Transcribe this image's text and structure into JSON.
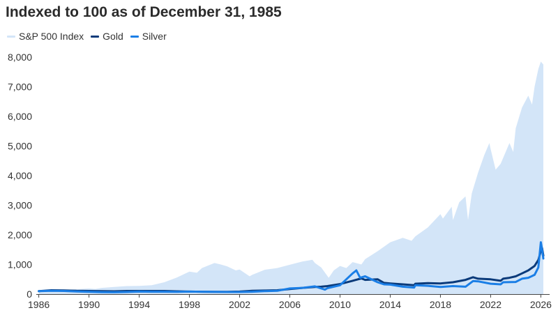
{
  "chart_data": {
    "type": "area",
    "title": "Indexed to 100 as of December 31, 1985",
    "xlabel": "",
    "ylabel": "",
    "xlim": [
      1985.8,
      2026.7
    ],
    "ylim": [
      0,
      8000
    ],
    "y_ticks": [
      0,
      1000,
      2000,
      3000,
      4000,
      5000,
      6000,
      7000,
      8000
    ],
    "y_tick_labels": [
      "0",
      "1,000",
      "2,000",
      "3,000",
      "4,000",
      "5,000",
      "6,000",
      "7,000",
      "8,000"
    ],
    "x_ticks": [
      1986,
      1990,
      1994,
      1998,
      2002,
      2006,
      2010,
      2014,
      2018,
      2022,
      2026
    ],
    "x_tick_labels": [
      "1986",
      "1990",
      "1994",
      "1998",
      "2002",
      "2006",
      "2010",
      "2014",
      "2018",
      "2022",
      "2026"
    ],
    "grid": false,
    "legend_position": "top-left",
    "series": [
      {
        "name": "S&P 500 Index",
        "style": "area",
        "color": "#d3e5f8",
        "points": [
          [
            1986,
            100
          ],
          [
            1987,
            130
          ],
          [
            1987.8,
            115
          ],
          [
            1988,
            140
          ],
          [
            1989,
            165
          ],
          [
            1990,
            190
          ],
          [
            1990.5,
            175
          ],
          [
            1991,
            210
          ],
          [
            1992,
            240
          ],
          [
            1993,
            270
          ],
          [
            1994,
            275
          ],
          [
            1995,
            300
          ],
          [
            1996,
            400
          ],
          [
            1997,
            560
          ],
          [
            1998,
            760
          ],
          [
            1998.6,
            720
          ],
          [
            1999,
            880
          ],
          [
            2000,
            1050
          ],
          [
            2000.5,
            1000
          ],
          [
            2001,
            940
          ],
          [
            2001.7,
            800
          ],
          [
            2002,
            830
          ],
          [
            2002.8,
            600
          ],
          [
            2003,
            650
          ],
          [
            2004,
            820
          ],
          [
            2005,
            880
          ],
          [
            2006,
            990
          ],
          [
            2007,
            1100
          ],
          [
            2007.8,
            1160
          ],
          [
            2008,
            1050
          ],
          [
            2008.5,
            900
          ],
          [
            2009.1,
            550
          ],
          [
            2009.5,
            800
          ],
          [
            2010,
            950
          ],
          [
            2010.5,
            880
          ],
          [
            2011,
            1080
          ],
          [
            2011.7,
            1000
          ],
          [
            2012,
            1180
          ],
          [
            2013,
            1450
          ],
          [
            2014,
            1750
          ],
          [
            2015,
            1900
          ],
          [
            2015.7,
            1800
          ],
          [
            2016,
            1950
          ],
          [
            2017,
            2250
          ],
          [
            2018,
            2700
          ],
          [
            2018.2,
            2550
          ],
          [
            2018.9,
            2950
          ],
          [
            2019,
            2500
          ],
          [
            2019.5,
            3100
          ],
          [
            2020,
            3300
          ],
          [
            2020.2,
            2500
          ],
          [
            2020.5,
            3400
          ],
          [
            2021,
            4100
          ],
          [
            2021.5,
            4700
          ],
          [
            2021.9,
            5100
          ],
          [
            2022,
            4900
          ],
          [
            2022.4,
            4200
          ],
          [
            2022.8,
            4400
          ],
          [
            2023,
            4600
          ],
          [
            2023.5,
            5100
          ],
          [
            2023.8,
            4800
          ],
          [
            2024,
            5600
          ],
          [
            2024.5,
            6300
          ],
          [
            2025,
            6700
          ],
          [
            2025.3,
            6400
          ],
          [
            2025.5,
            7000
          ],
          [
            2025.8,
            7600
          ],
          [
            2026,
            7850
          ],
          [
            2026.2,
            7750
          ]
        ]
      },
      {
        "name": "Gold",
        "style": "line",
        "color": "#0a3a7a",
        "points": [
          [
            1986,
            100
          ],
          [
            1987,
            130
          ],
          [
            1988,
            125
          ],
          [
            1989,
            110
          ],
          [
            1990,
            105
          ],
          [
            1991,
            100
          ],
          [
            1992,
            95
          ],
          [
            1993,
            105
          ],
          [
            1994,
            105
          ],
          [
            1995,
            105
          ],
          [
            1996,
            105
          ],
          [
            1997,
            95
          ],
          [
            1998,
            85
          ],
          [
            1999,
            80
          ],
          [
            2000,
            75
          ],
          [
            2001,
            75
          ],
          [
            2002,
            85
          ],
          [
            2003,
            110
          ],
          [
            2004,
            120
          ],
          [
            2005,
            130
          ],
          [
            2006,
            170
          ],
          [
            2007,
            210
          ],
          [
            2008,
            240
          ],
          [
            2008.5,
            250
          ],
          [
            2009,
            270
          ],
          [
            2010,
            340
          ],
          [
            2011,
            450
          ],
          [
            2011.7,
            530
          ],
          [
            2012,
            480
          ],
          [
            2013,
            500
          ],
          [
            2013.5,
            380
          ],
          [
            2014,
            360
          ],
          [
            2015,
            330
          ],
          [
            2015.9,
            300
          ],
          [
            2016,
            350
          ],
          [
            2017,
            370
          ],
          [
            2018,
            360
          ],
          [
            2019,
            400
          ],
          [
            2020,
            480
          ],
          [
            2020.6,
            570
          ],
          [
            2021,
            520
          ],
          [
            2022,
            500
          ],
          [
            2022.8,
            450
          ],
          [
            2023,
            520
          ],
          [
            2023.5,
            550
          ],
          [
            2024,
            600
          ],
          [
            2024.5,
            700
          ],
          [
            2025,
            800
          ],
          [
            2025.5,
            950
          ],
          [
            2025.8,
            1150
          ],
          [
            2026,
            1450
          ],
          [
            2026.1,
            1550
          ],
          [
            2026.2,
            1300
          ]
        ]
      },
      {
        "name": "Silver",
        "style": "line",
        "color": "#1a7ee6",
        "points": [
          [
            1986,
            100
          ],
          [
            1987,
            110
          ],
          [
            1988,
            105
          ],
          [
            1989,
            90
          ],
          [
            1990,
            75
          ],
          [
            1991,
            65
          ],
          [
            1992,
            60
          ],
          [
            1993,
            70
          ],
          [
            1994,
            85
          ],
          [
            1995,
            80
          ],
          [
            1996,
            80
          ],
          [
            1997,
            75
          ],
          [
            1998,
            85
          ],
          [
            1999,
            80
          ],
          [
            2000,
            75
          ],
          [
            2001,
            70
          ],
          [
            2002,
            70
          ],
          [
            2003,
            80
          ],
          [
            2004,
            100
          ],
          [
            2005,
            110
          ],
          [
            2006,
            190
          ],
          [
            2007,
            210
          ],
          [
            2008,
            260
          ],
          [
            2008.8,
            150
          ],
          [
            2009,
            200
          ],
          [
            2010,
            300
          ],
          [
            2011,
            700
          ],
          [
            2011.3,
            800
          ],
          [
            2011.6,
            550
          ],
          [
            2012,
            600
          ],
          [
            2013,
            400
          ],
          [
            2013.5,
            330
          ],
          [
            2014,
            320
          ],
          [
            2015,
            250
          ],
          [
            2015.9,
            220
          ],
          [
            2016,
            300
          ],
          [
            2017,
            280
          ],
          [
            2018,
            240
          ],
          [
            2019,
            270
          ],
          [
            2020,
            250
          ],
          [
            2020.6,
            440
          ],
          [
            2021,
            430
          ],
          [
            2022,
            350
          ],
          [
            2022.8,
            330
          ],
          [
            2023,
            400
          ],
          [
            2024,
            410
          ],
          [
            2024.5,
            520
          ],
          [
            2025,
            550
          ],
          [
            2025.5,
            650
          ],
          [
            2025.8,
            900
          ],
          [
            2026,
            1750
          ],
          [
            2026.1,
            1500
          ],
          [
            2026.2,
            1200
          ]
        ]
      }
    ]
  }
}
